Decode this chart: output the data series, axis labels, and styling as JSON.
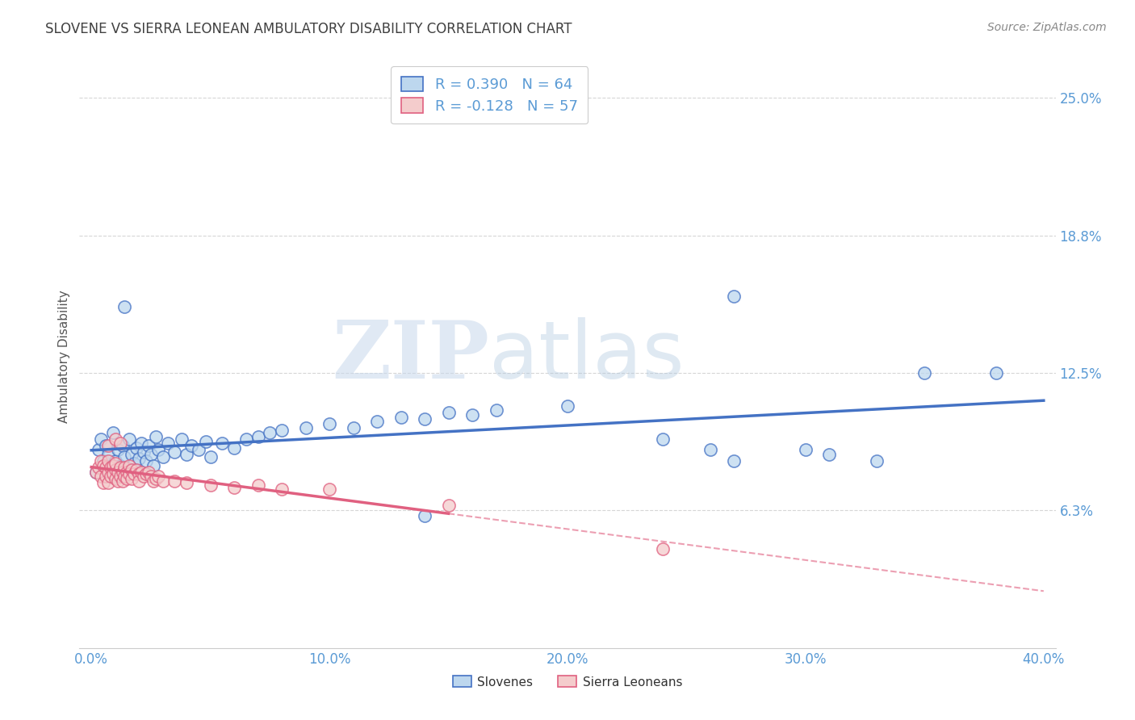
{
  "title": "SLOVENE VS SIERRA LEONEAN AMBULATORY DISABILITY CORRELATION CHART",
  "source": "Source: ZipAtlas.com",
  "ylabel": "Ambulatory Disability",
  "xlim": [
    -0.005,
    0.405
  ],
  "ylim": [
    0.0,
    0.265
  ],
  "yticks": [
    0.0625,
    0.125,
    0.1875,
    0.25
  ],
  "ytick_labels": [
    "6.3%",
    "12.5%",
    "18.8%",
    "25.0%"
  ],
  "xticks": [
    0.0,
    0.1,
    0.2,
    0.3,
    0.4
  ],
  "xtick_labels": [
    "0.0%",
    "10.0%",
    "20.0%",
    "30.0%",
    "40.0%"
  ],
  "slovene_color": "#4472C4",
  "slovene_fill": "#BDD7EE",
  "sierra_color": "#E06080",
  "sierra_fill": "#F4CCCC",
  "R_slovene": 0.39,
  "N_slovene": 64,
  "R_sierra": -0.128,
  "N_sierra": 57,
  "background_color": "#ffffff",
  "grid_color": "#cccccc",
  "title_color": "#404040",
  "watermark_zip": "ZIP",
  "watermark_atlas": "atlas",
  "legend_label_slovene": "Slovenes",
  "legend_label_sierra": "Sierra Leoneans",
  "slovene_points": [
    [
      0.002,
      0.08
    ],
    [
      0.003,
      0.09
    ],
    [
      0.004,
      0.095
    ],
    [
      0.005,
      0.085
    ],
    [
      0.006,
      0.092
    ],
    [
      0.007,
      0.088
    ],
    [
      0.008,
      0.082
    ],
    [
      0.009,
      0.098
    ],
    [
      0.01,
      0.085
    ],
    [
      0.01,
      0.078
    ],
    [
      0.011,
      0.09
    ],
    [
      0.012,
      0.083
    ],
    [
      0.013,
      0.092
    ],
    [
      0.014,
      0.087
    ],
    [
      0.015,
      0.082
    ],
    [
      0.016,
      0.095
    ],
    [
      0.017,
      0.088
    ],
    [
      0.018,
      0.084
    ],
    [
      0.019,
      0.091
    ],
    [
      0.02,
      0.086
    ],
    [
      0.021,
      0.093
    ],
    [
      0.022,
      0.089
    ],
    [
      0.023,
      0.085
    ],
    [
      0.024,
      0.092
    ],
    [
      0.025,
      0.088
    ],
    [
      0.026,
      0.083
    ],
    [
      0.027,
      0.096
    ],
    [
      0.028,
      0.09
    ],
    [
      0.03,
      0.087
    ],
    [
      0.032,
      0.093
    ],
    [
      0.035,
      0.089
    ],
    [
      0.038,
      0.095
    ],
    [
      0.04,
      0.088
    ],
    [
      0.042,
      0.092
    ],
    [
      0.045,
      0.09
    ],
    [
      0.048,
      0.094
    ],
    [
      0.05,
      0.087
    ],
    [
      0.055,
      0.093
    ],
    [
      0.06,
      0.091
    ],
    [
      0.065,
      0.095
    ],
    [
      0.07,
      0.096
    ],
    [
      0.075,
      0.098
    ],
    [
      0.08,
      0.099
    ],
    [
      0.09,
      0.1
    ],
    [
      0.1,
      0.102
    ],
    [
      0.11,
      0.1
    ],
    [
      0.12,
      0.103
    ],
    [
      0.13,
      0.105
    ],
    [
      0.14,
      0.104
    ],
    [
      0.15,
      0.107
    ],
    [
      0.16,
      0.106
    ],
    [
      0.17,
      0.108
    ],
    [
      0.014,
      0.155
    ],
    [
      0.27,
      0.16
    ],
    [
      0.35,
      0.125
    ],
    [
      0.38,
      0.125
    ],
    [
      0.2,
      0.11
    ],
    [
      0.24,
      0.095
    ],
    [
      0.26,
      0.09
    ],
    [
      0.3,
      0.09
    ],
    [
      0.31,
      0.088
    ],
    [
      0.33,
      0.085
    ],
    [
      0.14,
      0.06
    ],
    [
      0.27,
      0.085
    ]
  ],
  "sierra_points": [
    [
      0.002,
      0.08
    ],
    [
      0.003,
      0.082
    ],
    [
      0.004,
      0.085
    ],
    [
      0.004,
      0.078
    ],
    [
      0.005,
      0.083
    ],
    [
      0.005,
      0.075
    ],
    [
      0.006,
      0.082
    ],
    [
      0.006,
      0.078
    ],
    [
      0.007,
      0.08
    ],
    [
      0.007,
      0.075
    ],
    [
      0.007,
      0.085
    ],
    [
      0.008,
      0.082
    ],
    [
      0.008,
      0.078
    ],
    [
      0.009,
      0.083
    ],
    [
      0.009,
      0.079
    ],
    [
      0.01,
      0.081
    ],
    [
      0.01,
      0.077
    ],
    [
      0.01,
      0.084
    ],
    [
      0.011,
      0.08
    ],
    [
      0.011,
      0.076
    ],
    [
      0.012,
      0.082
    ],
    [
      0.012,
      0.078
    ],
    [
      0.013,
      0.08
    ],
    [
      0.013,
      0.076
    ],
    [
      0.014,
      0.082
    ],
    [
      0.014,
      0.078
    ],
    [
      0.015,
      0.08
    ],
    [
      0.015,
      0.077
    ],
    [
      0.016,
      0.083
    ],
    [
      0.016,
      0.079
    ],
    [
      0.017,
      0.081
    ],
    [
      0.017,
      0.077
    ],
    [
      0.018,
      0.079
    ],
    [
      0.019,
      0.081
    ],
    [
      0.02,
      0.079
    ],
    [
      0.02,
      0.076
    ],
    [
      0.021,
      0.08
    ],
    [
      0.022,
      0.078
    ],
    [
      0.023,
      0.079
    ],
    [
      0.024,
      0.08
    ],
    [
      0.025,
      0.078
    ],
    [
      0.026,
      0.076
    ],
    [
      0.027,
      0.077
    ],
    [
      0.028,
      0.078
    ],
    [
      0.03,
      0.076
    ],
    [
      0.035,
      0.076
    ],
    [
      0.04,
      0.075
    ],
    [
      0.05,
      0.074
    ],
    [
      0.06,
      0.073
    ],
    [
      0.07,
      0.074
    ],
    [
      0.08,
      0.072
    ],
    [
      0.1,
      0.072
    ],
    [
      0.007,
      0.092
    ],
    [
      0.01,
      0.095
    ],
    [
      0.012,
      0.093
    ],
    [
      0.15,
      0.065
    ],
    [
      0.24,
      0.045
    ]
  ]
}
